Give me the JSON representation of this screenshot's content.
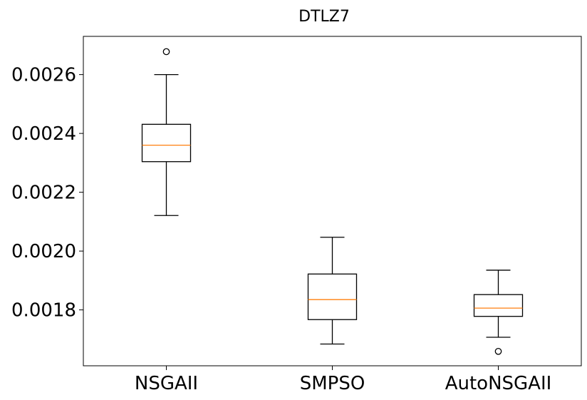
{
  "chart_data": {
    "type": "box",
    "title": "DTLZ7",
    "xlabel": "",
    "ylabel": "",
    "ylim": [
      0.00161,
      0.00273
    ],
    "yticks": [
      "0.0018",
      "0.0020",
      "0.0022",
      "0.0024",
      "0.0026"
    ],
    "grid": false,
    "categories": [
      "NSGAII",
      "SMPSO",
      "AutoNSGAII"
    ],
    "boxes": [
      {
        "name": "NSGAII",
        "whisker_low": 0.002121,
        "q1": 0.002304,
        "median": 0.00236,
        "q3": 0.002431,
        "whisker_high": 0.0026,
        "fliers": [
          0.002678
        ]
      },
      {
        "name": "SMPSO",
        "whisker_low": 0.001684,
        "q1": 0.001767,
        "median": 0.001835,
        "q3": 0.001922,
        "whisker_high": 0.002047,
        "fliers": []
      },
      {
        "name": "AutoNSGAII",
        "whisker_low": 0.001707,
        "q1": 0.001778,
        "median": 0.001806,
        "q3": 0.001852,
        "whisker_high": 0.001935,
        "fliers": [
          0.001659
        ]
      }
    ],
    "colors": {
      "box": "#000000",
      "median": "#ff7f0e",
      "flier": "#000000"
    }
  }
}
